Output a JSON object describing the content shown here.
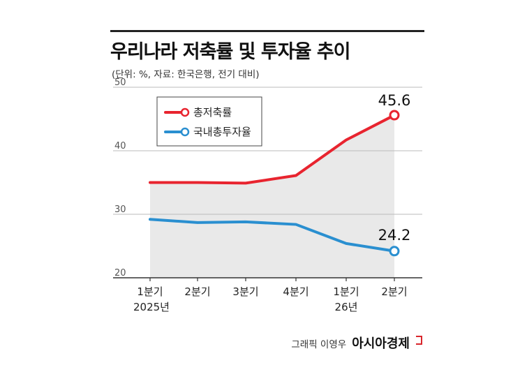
{
  "title": "우리나라 저축률 및 투자율 추이",
  "subtitle": "(단위: %, 자료: 한국은행, 전기 대비)",
  "credit": {
    "text": "그래픽 이영우",
    "brand": "아시아경제"
  },
  "colors": {
    "savings": "#e8242f",
    "investment": "#2a8fd0",
    "fill": "#e9e9e9",
    "axis": "#666666",
    "grid": "#bbbbbb"
  },
  "chart_data": {
    "type": "line",
    "x": [
      [
        "1분기",
        "2025년"
      ],
      [
        "2분기",
        ""
      ],
      [
        "3분기",
        ""
      ],
      [
        "4분기",
        ""
      ],
      [
        "1분기",
        "26년"
      ],
      [
        "2분기",
        ""
      ]
    ],
    "yticks": [
      "50",
      "40",
      "30",
      "20"
    ],
    "ylim": [
      20,
      50
    ],
    "series": [
      {
        "name": "총저축률",
        "color": "#e8242f",
        "values": [
          35.0,
          35.0,
          34.9,
          36.1,
          41.7,
          45.6
        ],
        "end_label": "45.6"
      },
      {
        "name": "국내총투자율",
        "color": "#2a8fd0",
        "values": [
          29.2,
          28.7,
          28.8,
          28.4,
          25.4,
          24.2
        ],
        "end_label": "24.2"
      }
    ],
    "legend_position": "top-left"
  }
}
